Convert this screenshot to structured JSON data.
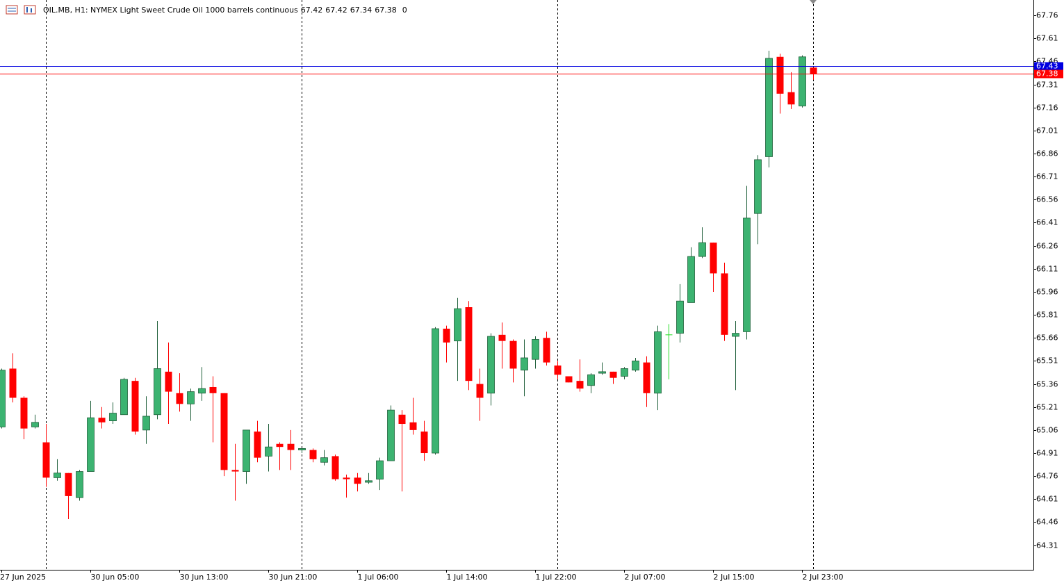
{
  "chart_data": {
    "type": "candlestick",
    "title": "OIL.MB, H1:  NYMEX Light Sweet Crude Oil 1000 barrels continuous",
    "volume": 0,
    "categories": [
      "27 Jun 2025",
      null,
      null,
      null,
      null,
      null,
      null,
      null,
      "30 Jun 05:00",
      null,
      null,
      null,
      null,
      null,
      null,
      null,
      "30 Jun 13:00",
      null,
      null,
      null,
      null,
      null,
      null,
      null,
      "30 Jun 21:00",
      null,
      null,
      null,
      null,
      null,
      null,
      null,
      "1 Jul 06:00",
      null,
      null,
      null,
      null,
      null,
      null,
      null,
      "1 Jul 14:00",
      null,
      null,
      null,
      null,
      null,
      null,
      null,
      "1 Jul 22:00",
      null,
      null,
      null,
      null,
      null,
      null,
      null,
      "2 Jul 07:00",
      null,
      null,
      null,
      null,
      null,
      null,
      null,
      "2 Jul 15:00",
      null,
      null,
      null,
      null,
      null,
      null,
      null,
      "2 Jul 23:00",
      null
    ],
    "open": [
      65.08,
      65.46,
      65.27,
      65.08,
      64.98,
      64.75,
      64.78,
      64.62,
      64.79,
      65.14,
      65.12,
      65.16,
      65.38,
      65.06,
      65.16,
      65.44,
      65.3,
      65.23,
      65.3,
      65.34,
      65.3,
      64.8,
      64.79,
      65.05,
      64.89,
      64.97,
      64.97,
      64.93,
      64.93,
      64.85,
      64.89,
      64.75,
      64.75,
      64.72,
      64.74,
      64.86,
      65.16,
      65.11,
      65.05,
      64.91,
      65.72,
      65.64,
      65.86,
      65.36,
      65.3,
      65.68,
      65.64,
      65.45,
      65.52,
      65.66,
      65.48,
      65.41,
      65.38,
      65.35,
      65.43,
      65.44,
      65.41,
      65.45,
      65.5,
      65.3,
      65.68,
      65.69,
      65.89,
      66.19,
      66.28,
      66.08,
      65.67,
      65.7,
      66.47,
      66.84,
      67.49,
      67.26,
      67.17,
      67.42
    ],
    "high": [
      65.46,
      65.56,
      65.28,
      65.16,
      65.1,
      64.87,
      64.78,
      64.8,
      65.25,
      65.21,
      65.24,
      65.4,
      65.4,
      65.28,
      65.77,
      65.63,
      65.43,
      65.33,
      65.47,
      65.41,
      65.3,
      64.97,
      65.06,
      65.12,
      65.1,
      64.98,
      65.06,
      64.94,
      64.94,
      64.93,
      64.9,
      64.77,
      64.78,
      64.78,
      64.88,
      65.22,
      65.19,
      65.27,
      65.12,
      65.73,
      65.74,
      65.92,
      65.9,
      65.46,
      65.69,
      65.76,
      65.65,
      65.65,
      65.67,
      65.7,
      65.51,
      65.41,
      65.52,
      65.43,
      65.5,
      65.44,
      65.47,
      65.53,
      65.54,
      65.74,
      65.75,
      66.01,
      66.25,
      66.38,
      66.28,
      66.15,
      65.77,
      66.65,
      66.85,
      67.53,
      67.51,
      67.39,
      67.5,
      67.42
    ],
    "low": [
      65.07,
      65.24,
      65.0,
      65.07,
      64.69,
      64.73,
      64.48,
      64.6,
      64.79,
      65.07,
      65.1,
      65.16,
      65.03,
      64.97,
      65.13,
      65.1,
      65.18,
      65.12,
      65.25,
      64.98,
      64.76,
      64.6,
      64.71,
      64.85,
      64.79,
      64.8,
      64.8,
      64.91,
      64.85,
      64.83,
      64.73,
      64.62,
      64.66,
      64.71,
      64.67,
      64.86,
      64.66,
      65.03,
      64.86,
      64.9,
      65.5,
      65.38,
      65.32,
      65.12,
      65.22,
      65.46,
      65.37,
      65.28,
      65.46,
      65.48,
      65.39,
      65.37,
      65.31,
      65.3,
      65.42,
      65.36,
      65.39,
      65.44,
      65.21,
      65.19,
      65.39,
      65.63,
      65.89,
      66.18,
      65.96,
      65.64,
      65.32,
      65.65,
      66.27,
      66.77,
      67.12,
      67.15,
      67.16,
      67.34
    ],
    "close": [
      65.45,
      65.27,
      65.07,
      65.11,
      64.75,
      64.78,
      64.63,
      64.79,
      65.14,
      65.11,
      65.17,
      65.39,
      65.05,
      65.15,
      65.46,
      65.31,
      65.23,
      65.31,
      65.33,
      65.3,
      64.8,
      64.79,
      65.06,
      64.88,
      64.95,
      64.95,
      64.93,
      64.94,
      64.87,
      64.88,
      64.74,
      64.74,
      64.71,
      64.73,
      64.86,
      65.19,
      65.1,
      65.06,
      64.91,
      65.72,
      65.63,
      65.85,
      65.38,
      65.27,
      65.67,
      65.64,
      65.46,
      65.53,
      65.65,
      65.5,
      65.42,
      65.37,
      65.33,
      65.42,
      65.44,
      65.4,
      65.46,
      65.51,
      65.3,
      65.7,
      65.68,
      65.9,
      66.19,
      66.28,
      66.08,
      65.68,
      65.69,
      66.44,
      66.82,
      67.48,
      67.25,
      67.18,
      67.49,
      67.38
    ],
    "up_color": "#3cb371",
    "down_color": "#ff0000",
    "doji_color": "#22dd22",
    "ask": 67.43,
    "ask_color": "#0000e0",
    "bid": 67.38,
    "bid_color": "#ff0000",
    "ylim": [
      64.15,
      67.86
    ],
    "yticks": [
      67.76,
      67.61,
      67.46,
      67.31,
      67.16,
      67.01,
      66.86,
      66.71,
      66.56,
      66.41,
      66.26,
      66.11,
      65.96,
      65.81,
      65.66,
      65.51,
      65.36,
      65.21,
      65.06,
      64.91,
      64.76,
      64.61,
      64.46,
      64.31
    ]
  }
}
